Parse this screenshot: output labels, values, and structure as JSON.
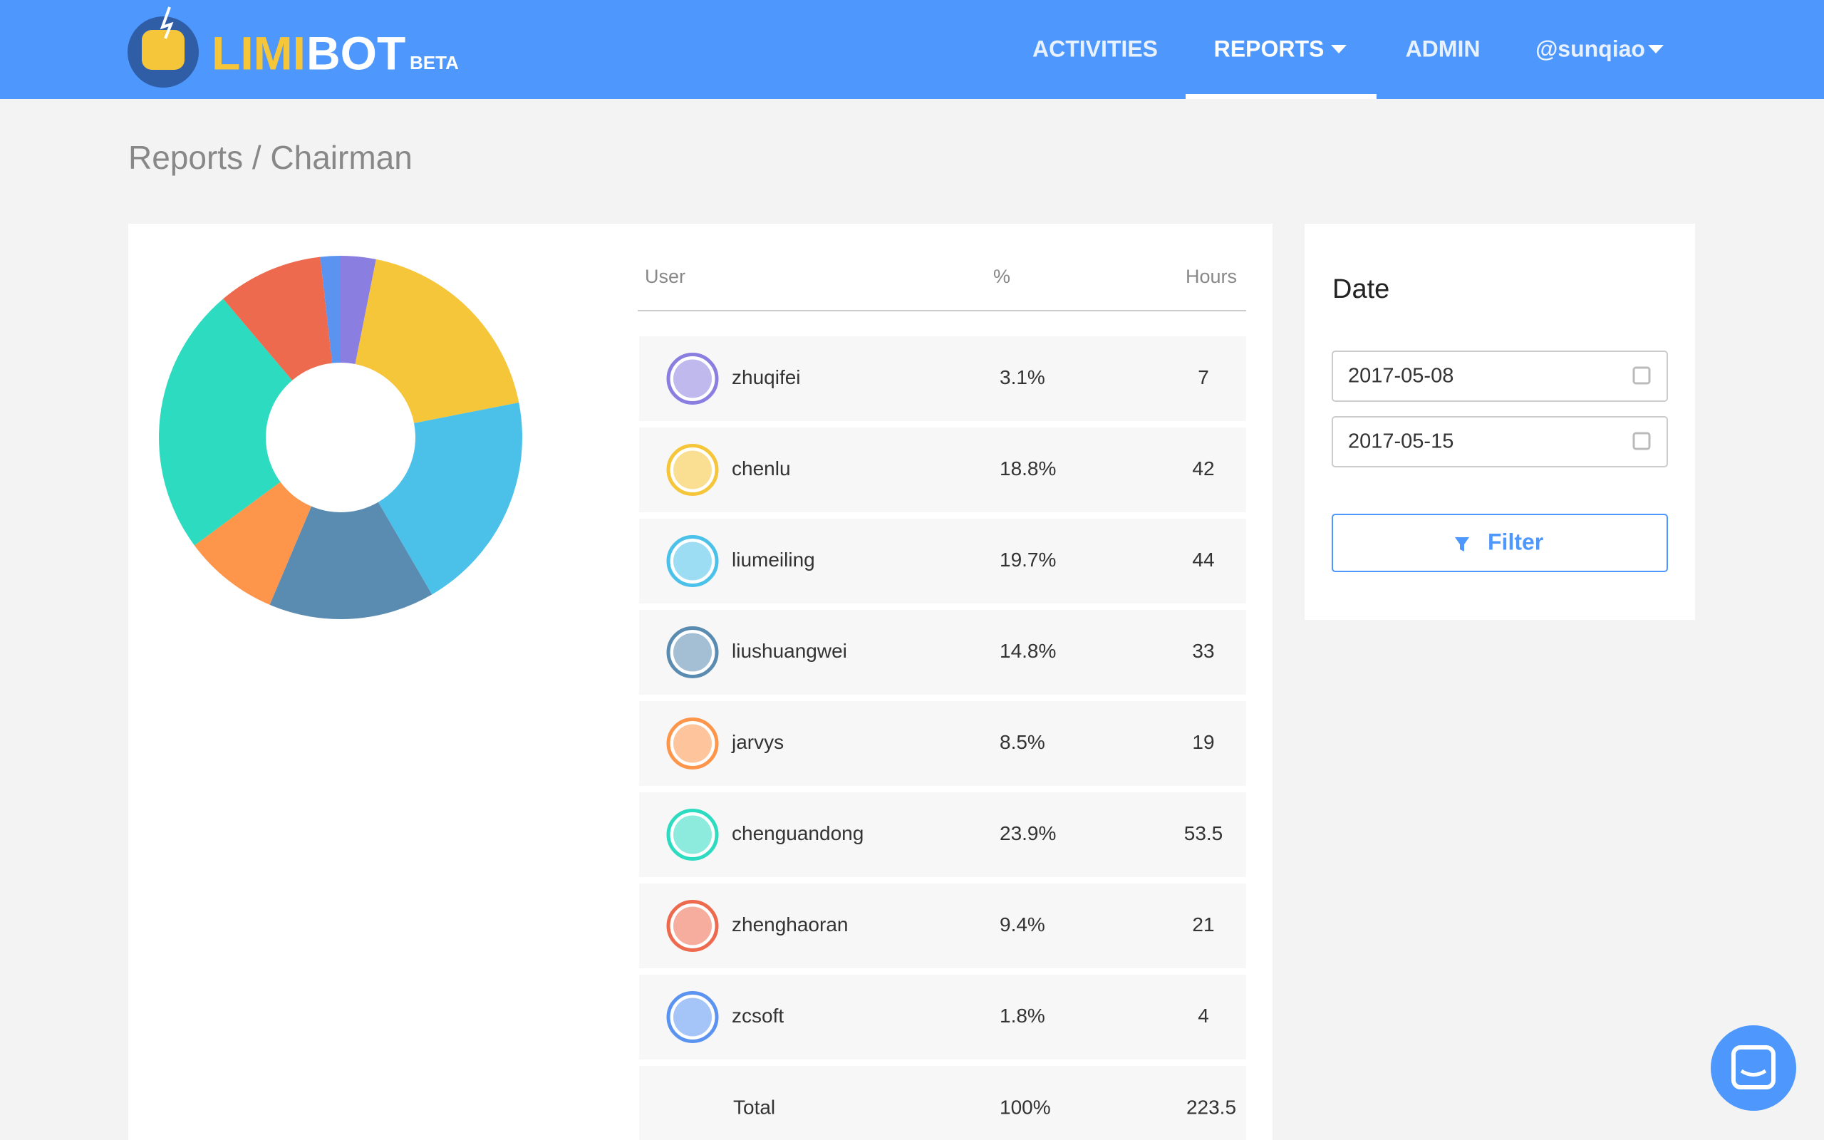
{
  "header": {
    "logo_left": "LIMI",
    "logo_right": "BOT",
    "badge": "BETA",
    "nav": [
      "ACTIVITIES",
      "REPORTS",
      "ADMIN",
      "@sunqiao"
    ]
  },
  "breadcrumb": "Reports / Chairman",
  "table": {
    "columns": [
      "User",
      "%",
      "Hours"
    ],
    "rows": [
      {
        "user": "zhuqifei",
        "percent": "3.1%",
        "hours": 7,
        "color": "#8a7fe0"
      },
      {
        "user": "chenlu",
        "percent": "18.8%",
        "hours": 42,
        "color": "#f5c53a"
      },
      {
        "user": "liumeiling",
        "percent": "19.7%",
        "hours": 44,
        "color": "#4bc1ea"
      },
      {
        "user": "liushuangwei",
        "percent": "14.8%",
        "hours": 33,
        "color": "#5a8bb0"
      },
      {
        "user": "jarvys",
        "percent": "8.5%",
        "hours": 19,
        "color": "#fd954b"
      },
      {
        "user": "chenguandong",
        "percent": "23.9%",
        "hours": 53.5,
        "color": "#2ddbc0"
      },
      {
        "user": "zhenghaoran",
        "percent": "9.4%",
        "hours": 21,
        "color": "#ee6a4e"
      },
      {
        "user": "zcsoft",
        "percent": "1.8%",
        "hours": 4,
        "color": "#5b93f0"
      }
    ],
    "total": {
      "label": "Total",
      "percent": "100%",
      "hours": 223.5
    }
  },
  "date_filter": {
    "title": "Date",
    "start": "2017-05-08",
    "end": "2017-05-15",
    "button": "Filter"
  }
}
